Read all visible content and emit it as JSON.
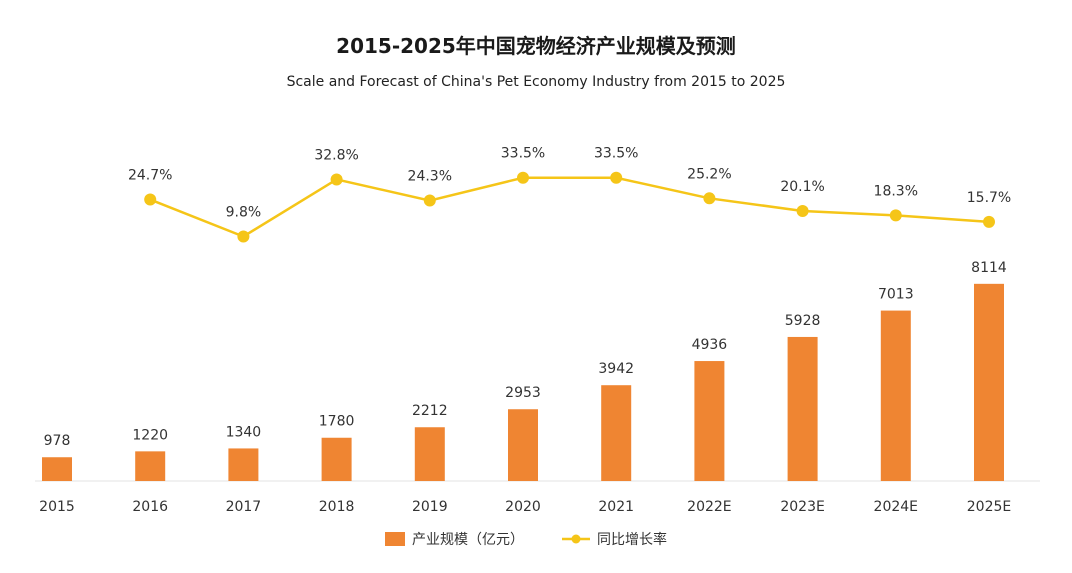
{
  "chart_data": {
    "type": "bar",
    "title": "2015-2025年中国宠物经济产业规模及预测",
    "subtitle": "Scale and Forecast of China's Pet Economy Industry from 2015 to 2025",
    "categories": [
      "2015",
      "2016",
      "2017",
      "2018",
      "2019",
      "2020",
      "2021",
      "2022E",
      "2023E",
      "2024E",
      "2025E"
    ],
    "series": [
      {
        "name": "产业规模（亿元）",
        "kind": "bar",
        "color": "#EF8532",
        "values": [
          978,
          1220,
          1340,
          1780,
          2212,
          2953,
          3942,
          4936,
          5928,
          7013,
          8114
        ],
        "labels": [
          "978",
          "1220",
          "1340",
          "1780",
          "2212",
          "2953",
          "3942",
          "4936",
          "5928",
          "7013",
          "8114"
        ]
      },
      {
        "name": "同比增长率",
        "kind": "line",
        "color": "#F5C518",
        "values": [
          null,
          24.7,
          9.8,
          32.8,
          24.3,
          33.5,
          33.5,
          25.2,
          20.1,
          18.3,
          15.7
        ],
        "labels": [
          "",
          "24.7%",
          "9.8%",
          "32.8%",
          "24.3%",
          "33.5%",
          "33.5%",
          "25.2%",
          "20.1%",
          "18.3%",
          "15.7%"
        ]
      }
    ],
    "grid": false,
    "legend_position": "bottom-center"
  }
}
